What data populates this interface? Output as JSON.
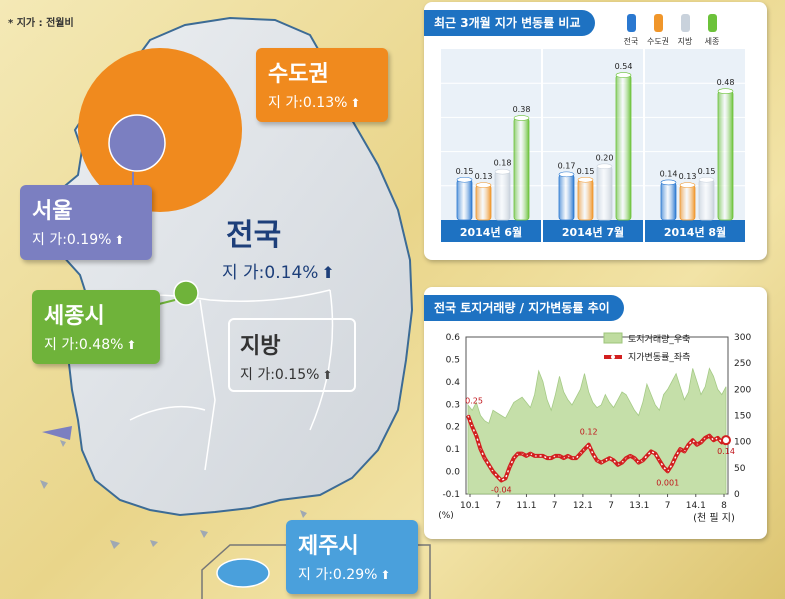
{
  "note": "* 지가 : 전월비",
  "national": {
    "name": "전국",
    "value": "지  가:0.14%"
  },
  "regions": {
    "capital": {
      "name": "수도권",
      "value": "지  가:0.13%"
    },
    "seoul": {
      "name": "서울",
      "value": "지  가:0.19%"
    },
    "sejong": {
      "name": "세종시",
      "value": "지  가:0.48%"
    },
    "local": {
      "name": "지방",
      "value": "지  가:0.15%"
    },
    "jeju": {
      "name": "제주시",
      "value": "지  가:0.29%"
    }
  },
  "colors": {
    "capital": "#f08a1e",
    "seoul": "#7b7fc1",
    "sejong": "#6fb33a",
    "jeju": "#4aa0dc",
    "national": "#1d3f7a",
    "title_bar": "#1e72c2"
  },
  "bar_panel": {
    "title": "최근 3개월 지가 변동률 비교"
  },
  "line_panel": {
    "title": "전국 토지거래량 / 지가변동률 추이"
  },
  "chart_data": [
    {
      "type": "bar",
      "title": "최근 3개월 지가 변동률 비교",
      "categories": [
        "2014년 6월",
        "2014년 7월",
        "2014년 8월"
      ],
      "series": [
        {
          "name": "전국",
          "color": "#2a78d0",
          "values": [
            0.15,
            0.17,
            0.14
          ]
        },
        {
          "name": "수도권",
          "color": "#f0962a",
          "values": [
            0.13,
            0.15,
            0.13
          ]
        },
        {
          "name": "지방",
          "color": "#c9d2dc",
          "values": [
            0.18,
            0.2,
            0.15
          ]
        },
        {
          "name": "세종",
          "color": "#6cc23a",
          "values": [
            0.38,
            0.54,
            0.48
          ]
        }
      ],
      "ylim": [
        0,
        0.6
      ],
      "legend": "top-right"
    },
    {
      "type": "line",
      "title": "전국 토지거래량 / 지가변동률 추이",
      "x_ticks": [
        "10.1",
        "7",
        "11.1",
        "7",
        "12.1",
        "7",
        "13.1",
        "7",
        "14.1",
        "8"
      ],
      "xlabel": "(천 필 지)",
      "y_left": {
        "label": "(%)",
        "ticks": [
          "0.6",
          "0.5",
          "0.4",
          "0.3",
          "0.2",
          "0.1",
          "0.0",
          "-0.1"
        ],
        "range": [
          -0.1,
          0.6
        ]
      },
      "y_right": {
        "ticks": [
          "300",
          "250",
          "200",
          "150",
          "100",
          "50",
          "0"
        ],
        "range": [
          0,
          300
        ]
      },
      "series": [
        {
          "name": "토지거래량_우축",
          "axis": "right",
          "style": "area",
          "values": [
            170,
            160,
            175,
            150,
            140,
            135,
            160,
            155,
            150,
            145,
            160,
            175,
            180,
            185,
            175,
            165,
            190,
            235,
            215,
            180,
            160,
            190,
            225,
            195,
            180,
            170,
            185,
            200,
            230,
            195,
            175,
            165,
            170,
            190,
            175,
            165,
            180,
            195,
            190,
            175,
            160,
            150,
            175,
            210,
            190,
            170,
            160,
            190,
            200,
            215,
            230,
            205,
            180,
            195,
            240,
            215,
            190,
            205,
            240,
            225,
            200,
            190,
            205
          ]
        },
        {
          "name": "지가변동률_좌측",
          "axis": "left",
          "style": "line",
          "values": [
            0.25,
            0.2,
            0.16,
            0.1,
            0.06,
            0.03,
            0.0,
            -0.02,
            -0.04,
            -0.03,
            0.02,
            0.06,
            0.08,
            0.08,
            0.07,
            0.08,
            0.07,
            0.07,
            0.07,
            0.06,
            0.06,
            0.07,
            0.07,
            0.06,
            0.07,
            0.06,
            0.06,
            0.08,
            0.1,
            0.12,
            0.08,
            0.05,
            0.04,
            0.05,
            0.06,
            0.05,
            0.03,
            0.04,
            0.06,
            0.07,
            0.06,
            0.04,
            0.05,
            0.07,
            0.09,
            0.08,
            0.05,
            0.02,
            0.001,
            0.03,
            0.07,
            0.1,
            0.09,
            0.12,
            0.14,
            0.12,
            0.13,
            0.15,
            0.16,
            0.14,
            0.15,
            0.13,
            0.14
          ]
        }
      ],
      "annotations": [
        "0.25",
        "-0.04",
        "0.12",
        "0.001",
        "0.14"
      ]
    }
  ]
}
